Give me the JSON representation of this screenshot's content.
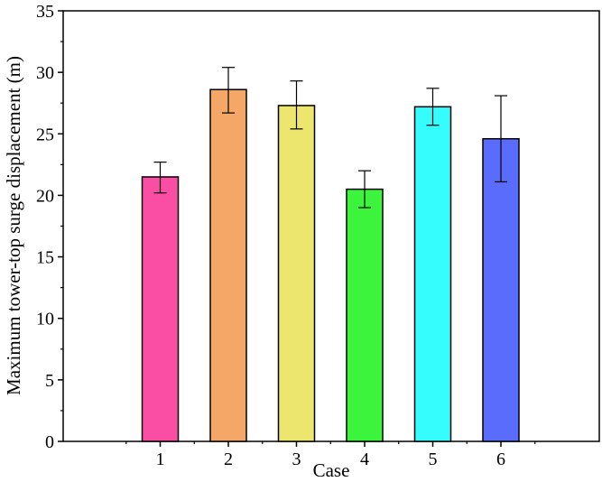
{
  "chart_data": {
    "type": "bar",
    "categories": [
      "1",
      "2",
      "3",
      "4",
      "5",
      "6"
    ],
    "values": [
      21.5,
      28.6,
      27.3,
      20.5,
      27.2,
      24.6
    ],
    "error_low": [
      20.2,
      26.7,
      25.4,
      19.0,
      25.7,
      21.1
    ],
    "error_high": [
      22.7,
      30.4,
      29.3,
      22.0,
      28.7,
      28.1
    ],
    "colors": [
      "#fa4da4",
      "#f4a767",
      "#ede66e",
      "#3bf43b",
      "#36fdfd",
      "#5a6cfb"
    ],
    "xlabel": "Case",
    "ylabel": "Maximum tower-top surge displacement (m)",
    "ylim": [
      0,
      35
    ],
    "yticks": [
      0,
      5,
      10,
      15,
      20,
      25,
      30,
      35
    ],
    "grid": false,
    "legend": "none"
  }
}
